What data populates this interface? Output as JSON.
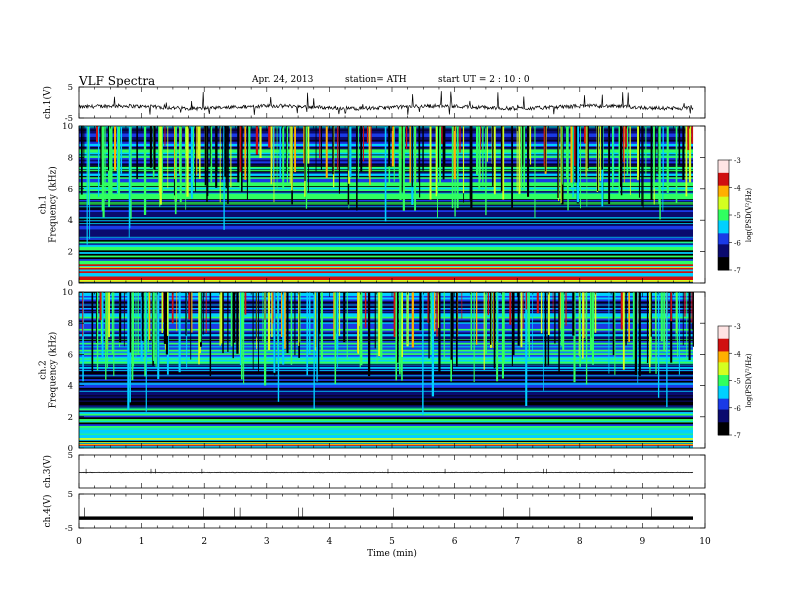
{
  "header": {
    "title": "VLF  Spectra",
    "date": "Apr. 24, 2013",
    "station": "station= ATH",
    "start": "start  UT  =   2  : 10 : 0"
  },
  "chart_data": [
    {
      "type": "line",
      "panel": "ch1-waveform",
      "ylabel": "ch.1(V)",
      "ylim": [
        -5,
        5
      ],
      "yticks": [
        "5",
        "-5"
      ],
      "xlim": [
        0,
        9.8
      ],
      "series": [
        {
          "values": "noisy waveform around -1.5 V with occasional spikes to about 4 V"
        }
      ]
    },
    {
      "type": "heatmap",
      "panel": "ch1-spectrogram",
      "ylabel": "ch.1 Frequency (kHz)",
      "ylim": [
        0,
        10
      ],
      "yticks": [
        "0",
        "2",
        "4",
        "6",
        "8",
        "10"
      ],
      "xlim": [
        0,
        9.8
      ],
      "colorbar": {
        "label": "log(PSD(V²/Hz)",
        "range": [
          -7,
          -3
        ],
        "ticks": [
          "-3",
          "-4",
          "-5",
          "-6",
          "-7"
        ]
      }
    },
    {
      "type": "heatmap",
      "panel": "ch2-spectrogram",
      "ylabel": "ch.2 Frequency (kHz)",
      "ylim": [
        0,
        10
      ],
      "yticks": [
        "0",
        "2",
        "4",
        "6",
        "8",
        "10"
      ],
      "xlim": [
        0,
        9.8
      ],
      "colorbar": {
        "label": "log(PSD(V²/Hz)",
        "range": [
          -7,
          -3
        ],
        "ticks": [
          "-3",
          "-4",
          "-5",
          "-6",
          "-7"
        ]
      }
    },
    {
      "type": "line",
      "panel": "ch3-waveform",
      "ylabel": "ch.3(V)",
      "ylim": [
        -5,
        5
      ],
      "yticks": [
        "5"
      ],
      "xlim": [
        0,
        9.8
      ],
      "series": [
        {
          "values": "flat near 0 V"
        }
      ]
    },
    {
      "type": "line",
      "panel": "ch4-waveform",
      "ylabel": "ch.4(V)",
      "ylim": [
        -5,
        5
      ],
      "yticks": [
        "5",
        "-5"
      ],
      "xlim": [
        0,
        9.8
      ],
      "series": [
        {
          "values": "flat dense trace near -2 V"
        }
      ]
    }
  ],
  "xaxis": {
    "label": "Time  (min)",
    "range": [
      0,
      10
    ],
    "ticks": [
      "0",
      "1",
      "2",
      "3",
      "4",
      "5",
      "6",
      "7",
      "8",
      "9",
      "10"
    ]
  },
  "colors": {
    "colormap": [
      "#000000",
      "#0a0a6e",
      "#1a3ae6",
      "#00d0ff",
      "#30ff60",
      "#d4ff20",
      "#ffb000",
      "#d01010",
      "#ffe4e4"
    ]
  }
}
